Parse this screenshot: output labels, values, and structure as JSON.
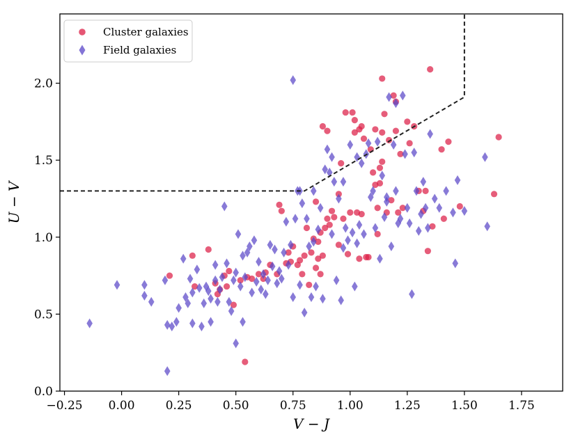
{
  "chart_data": {
    "type": "scatter",
    "xlabel": "V − J",
    "ylabel": "U − V",
    "xlim": [
      -0.27,
      1.93
    ],
    "ylim": [
      0.0,
      2.45
    ],
    "xticks": [
      -0.25,
      0.0,
      0.25,
      0.5,
      0.75,
      1.0,
      1.25,
      1.5,
      1.75
    ],
    "xtick_labels": [
      "−0.25",
      "0.00",
      "0.25",
      "0.50",
      "0.75",
      "1.00",
      "1.25",
      "1.50",
      "1.75"
    ],
    "yticks": [
      0.0,
      0.5,
      1.0,
      1.5,
      2.0
    ],
    "ytick_labels": [
      "0.0",
      "0.5",
      "1.0",
      "1.5",
      "2.0"
    ],
    "legend_position": "top-left",
    "selection_boundary": {
      "style": "dashed",
      "color": "#222222",
      "points": [
        [
          -0.27,
          1.3
        ],
        [
          0.8,
          1.3
        ],
        [
          1.5,
          1.91
        ],
        [
          1.5,
          2.45
        ]
      ]
    },
    "series": [
      {
        "name": "Cluster galaxies",
        "marker": "circle",
        "color": "#dc1e46",
        "points": [
          [
            0.21,
            0.75
          ],
          [
            0.31,
            0.88
          ],
          [
            0.38,
            0.92
          ],
          [
            0.32,
            0.68
          ],
          [
            0.42,
            0.63
          ],
          [
            0.41,
            0.7
          ],
          [
            0.43,
            0.66
          ],
          [
            0.45,
            0.75
          ],
          [
            0.47,
            0.78
          ],
          [
            0.46,
            0.68
          ],
          [
            0.49,
            0.56
          ],
          [
            0.52,
            0.72
          ],
          [
            0.55,
            0.74
          ],
          [
            0.57,
            0.73
          ],
          [
            0.54,
            0.19
          ],
          [
            0.6,
            0.76
          ],
          [
            0.62,
            0.73
          ],
          [
            0.63,
            0.77
          ],
          [
            0.65,
            0.82
          ],
          [
            0.68,
            0.76
          ],
          [
            0.69,
            1.21
          ],
          [
            0.7,
            1.17
          ],
          [
            0.72,
            0.83
          ],
          [
            0.73,
            0.9
          ],
          [
            0.74,
            0.84
          ],
          [
            0.75,
            0.94
          ],
          [
            0.77,
            0.82
          ],
          [
            0.78,
            0.85
          ],
          [
            0.79,
            0.76
          ],
          [
            0.8,
            0.88
          ],
          [
            0.81,
            1.06
          ],
          [
            0.82,
            0.69
          ],
          [
            0.83,
            0.9
          ],
          [
            0.84,
            0.99
          ],
          [
            0.85,
            1.23
          ],
          [
            0.85,
            0.8
          ],
          [
            0.86,
            0.97
          ],
          [
            0.86,
            0.86
          ],
          [
            0.87,
            0.76
          ],
          [
            0.87,
            1.03
          ],
          [
            0.88,
            0.88
          ],
          [
            0.89,
            1.06
          ],
          [
            0.9,
            1.12
          ],
          [
            0.91,
            1.08
          ],
          [
            0.93,
            1.13
          ],
          [
            0.95,
            0.95
          ],
          [
            0.96,
            1.48
          ],
          [
            0.97,
            1.12
          ],
          [
            0.98,
            1.81
          ],
          [
            0.99,
            0.89
          ],
          [
            1.0,
            1.16
          ],
          [
            1.01,
            1.81
          ],
          [
            1.02,
            1.68
          ],
          [
            1.03,
            1.16
          ],
          [
            1.04,
            1.7
          ],
          [
            1.05,
            1.72
          ],
          [
            1.04,
            0.86
          ],
          [
            1.05,
            1.15
          ],
          [
            1.06,
            1.64
          ],
          [
            1.07,
            0.87
          ],
          [
            1.08,
            0.87
          ],
          [
            1.09,
            1.57
          ],
          [
            1.1,
            1.42
          ],
          [
            1.11,
            1.34
          ],
          [
            1.12,
            1.02
          ],
          [
            1.13,
            1.45
          ],
          [
            1.13,
            1.35
          ],
          [
            1.14,
            1.68
          ],
          [
            1.15,
            1.8
          ],
          [
            1.16,
            1.16
          ],
          [
            1.17,
            1.63
          ],
          [
            1.18,
            1.24
          ],
          [
            1.19,
            1.92
          ],
          [
            1.2,
            1.88
          ],
          [
            1.21,
            1.16
          ],
          [
            1.23,
            1.19
          ],
          [
            1.25,
            1.75
          ],
          [
            1.26,
            1.61
          ],
          [
            1.28,
            1.72
          ],
          [
            1.3,
            1.3
          ],
          [
            1.32,
            1.17
          ],
          [
            1.33,
            1.3
          ],
          [
            1.34,
            0.91
          ],
          [
            1.36,
            1.07
          ],
          [
            1.4,
            1.57
          ],
          [
            1.41,
            1.12
          ],
          [
            1.43,
            1.62
          ],
          [
            1.48,
            1.2
          ],
          [
            1.63,
            1.28
          ],
          [
            1.65,
            1.65
          ],
          [
            1.02,
            1.76
          ],
          [
            0.88,
            1.72
          ],
          [
            0.92,
            1.17
          ],
          [
            1.12,
            1.19
          ],
          [
            0.9,
            1.69
          ],
          [
            1.14,
            2.03
          ],
          [
            1.35,
            2.09
          ],
          [
            1.22,
            1.54
          ],
          [
            1.11,
            1.7
          ],
          [
            1.2,
            1.69
          ],
          [
            0.95,
            1.28
          ],
          [
            1.14,
            1.49
          ]
        ]
      },
      {
        "name": "Field galaxies",
        "marker": "diamond",
        "color": "#5a46c8",
        "points": [
          [
            -0.14,
            0.44
          ],
          [
            -0.02,
            0.69
          ],
          [
            0.1,
            0.69
          ],
          [
            0.1,
            0.62
          ],
          [
            0.13,
            0.58
          ],
          [
            0.19,
            0.72
          ],
          [
            0.2,
            0.43
          ],
          [
            0.2,
            0.13
          ],
          [
            0.22,
            0.42
          ],
          [
            0.24,
            0.45
          ],
          [
            0.25,
            0.54
          ],
          [
            0.27,
            0.86
          ],
          [
            0.28,
            0.61
          ],
          [
            0.29,
            0.57
          ],
          [
            0.3,
            0.73
          ],
          [
            0.31,
            0.64
          ],
          [
            0.31,
            0.44
          ],
          [
            0.33,
            0.79
          ],
          [
            0.34,
            0.67
          ],
          [
            0.35,
            0.42
          ],
          [
            0.36,
            0.57
          ],
          [
            0.37,
            0.68
          ],
          [
            0.38,
            0.65
          ],
          [
            0.39,
            0.6
          ],
          [
            0.39,
            0.45
          ],
          [
            0.41,
            0.72
          ],
          [
            0.41,
            0.82
          ],
          [
            0.42,
            0.58
          ],
          [
            0.43,
            0.66
          ],
          [
            0.44,
            0.74
          ],
          [
            0.45,
            1.2
          ],
          [
            0.46,
            0.83
          ],
          [
            0.47,
            0.58
          ],
          [
            0.48,
            0.52
          ],
          [
            0.49,
            0.72
          ],
          [
            0.5,
            0.77
          ],
          [
            0.5,
            0.31
          ],
          [
            0.51,
            1.02
          ],
          [
            0.52,
            0.68
          ],
          [
            0.53,
            0.88
          ],
          [
            0.53,
            0.45
          ],
          [
            0.54,
            0.74
          ],
          [
            0.55,
            0.9
          ],
          [
            0.56,
            0.94
          ],
          [
            0.57,
            0.64
          ],
          [
            0.58,
            0.98
          ],
          [
            0.59,
            0.71
          ],
          [
            0.6,
            0.84
          ],
          [
            0.61,
            0.66
          ],
          [
            0.62,
            0.76
          ],
          [
            0.63,
            0.63
          ],
          [
            0.64,
            0.72
          ],
          [
            0.65,
            0.95
          ],
          [
            0.66,
            0.81
          ],
          [
            0.67,
            0.92
          ],
          [
            0.68,
            0.7
          ],
          [
            0.69,
            0.78
          ],
          [
            0.7,
            0.73
          ],
          [
            0.71,
            0.9
          ],
          [
            0.72,
            1.1
          ],
          [
            0.73,
            0.82
          ],
          [
            0.74,
            0.95
          ],
          [
            0.75,
            0.61
          ],
          [
            0.75,
            2.02
          ],
          [
            0.76,
            1.12
          ],
          [
            0.77,
            1.3
          ],
          [
            0.78,
            0.69
          ],
          [
            0.79,
            1.22
          ],
          [
            0.8,
            0.51
          ],
          [
            0.81,
            1.12
          ],
          [
            0.82,
            0.94
          ],
          [
            0.83,
            0.61
          ],
          [
            0.84,
            0.97
          ],
          [
            0.84,
            1.3
          ],
          [
            0.85,
            0.68
          ],
          [
            0.86,
            1.05
          ],
          [
            0.87,
            1.19
          ],
          [
            0.88,
            0.6
          ],
          [
            0.89,
            1.44
          ],
          [
            0.9,
            1.57
          ],
          [
            0.91,
            1.42
          ],
          [
            0.92,
            1.52
          ],
          [
            0.93,
            1.36
          ],
          [
            0.94,
            0.72
          ],
          [
            0.95,
            1.25
          ],
          [
            0.96,
            0.59
          ],
          [
            0.97,
            0.93
          ],
          [
            0.98,
            1.06
          ],
          [
            0.99,
            0.98
          ],
          [
            1.0,
            1.6
          ],
          [
            1.01,
            1.03
          ],
          [
            1.02,
            0.68
          ],
          [
            1.03,
            0.96
          ],
          [
            1.04,
            1.08
          ],
          [
            1.05,
            1.48
          ],
          [
            1.06,
            1.02
          ],
          [
            1.07,
            1.54
          ],
          [
            1.08,
            1.61
          ],
          [
            1.09,
            1.26
          ],
          [
            1.1,
            1.3
          ],
          [
            1.11,
            1.06
          ],
          [
            1.12,
            1.62
          ],
          [
            1.13,
            0.86
          ],
          [
            1.14,
            1.4
          ],
          [
            1.15,
            1.13
          ],
          [
            1.16,
            1.26
          ],
          [
            1.17,
            1.91
          ],
          [
            1.18,
            0.94
          ],
          [
            1.19,
            1.6
          ],
          [
            1.2,
            1.3
          ],
          [
            1.21,
            1.09
          ],
          [
            1.22,
            1.12
          ],
          [
            1.23,
            1.92
          ],
          [
            1.24,
            1.54
          ],
          [
            1.25,
            1.19
          ],
          [
            1.26,
            1.09
          ],
          [
            1.27,
            0.63
          ],
          [
            1.28,
            1.55
          ],
          [
            1.29,
            1.3
          ],
          [
            1.3,
            1.04
          ],
          [
            1.31,
            1.15
          ],
          [
            1.32,
            1.36
          ],
          [
            1.33,
            1.19
          ],
          [
            1.34,
            1.06
          ],
          [
            1.35,
            1.67
          ],
          [
            1.37,
            1.25
          ],
          [
            1.39,
            1.19
          ],
          [
            1.42,
            1.3
          ],
          [
            1.45,
            1.16
          ],
          [
            1.46,
            0.83
          ],
          [
            1.47,
            1.37
          ],
          [
            1.5,
            1.17
          ],
          [
            1.59,
            1.52
          ],
          [
            1.6,
            1.07
          ],
          [
            1.2,
            1.87
          ],
          [
            1.16,
            1.23
          ],
          [
            0.78,
            1.3
          ],
          [
            0.97,
            1.36
          ],
          [
            0.92,
            1.02
          ],
          [
            1.03,
            1.52
          ]
        ]
      }
    ]
  }
}
